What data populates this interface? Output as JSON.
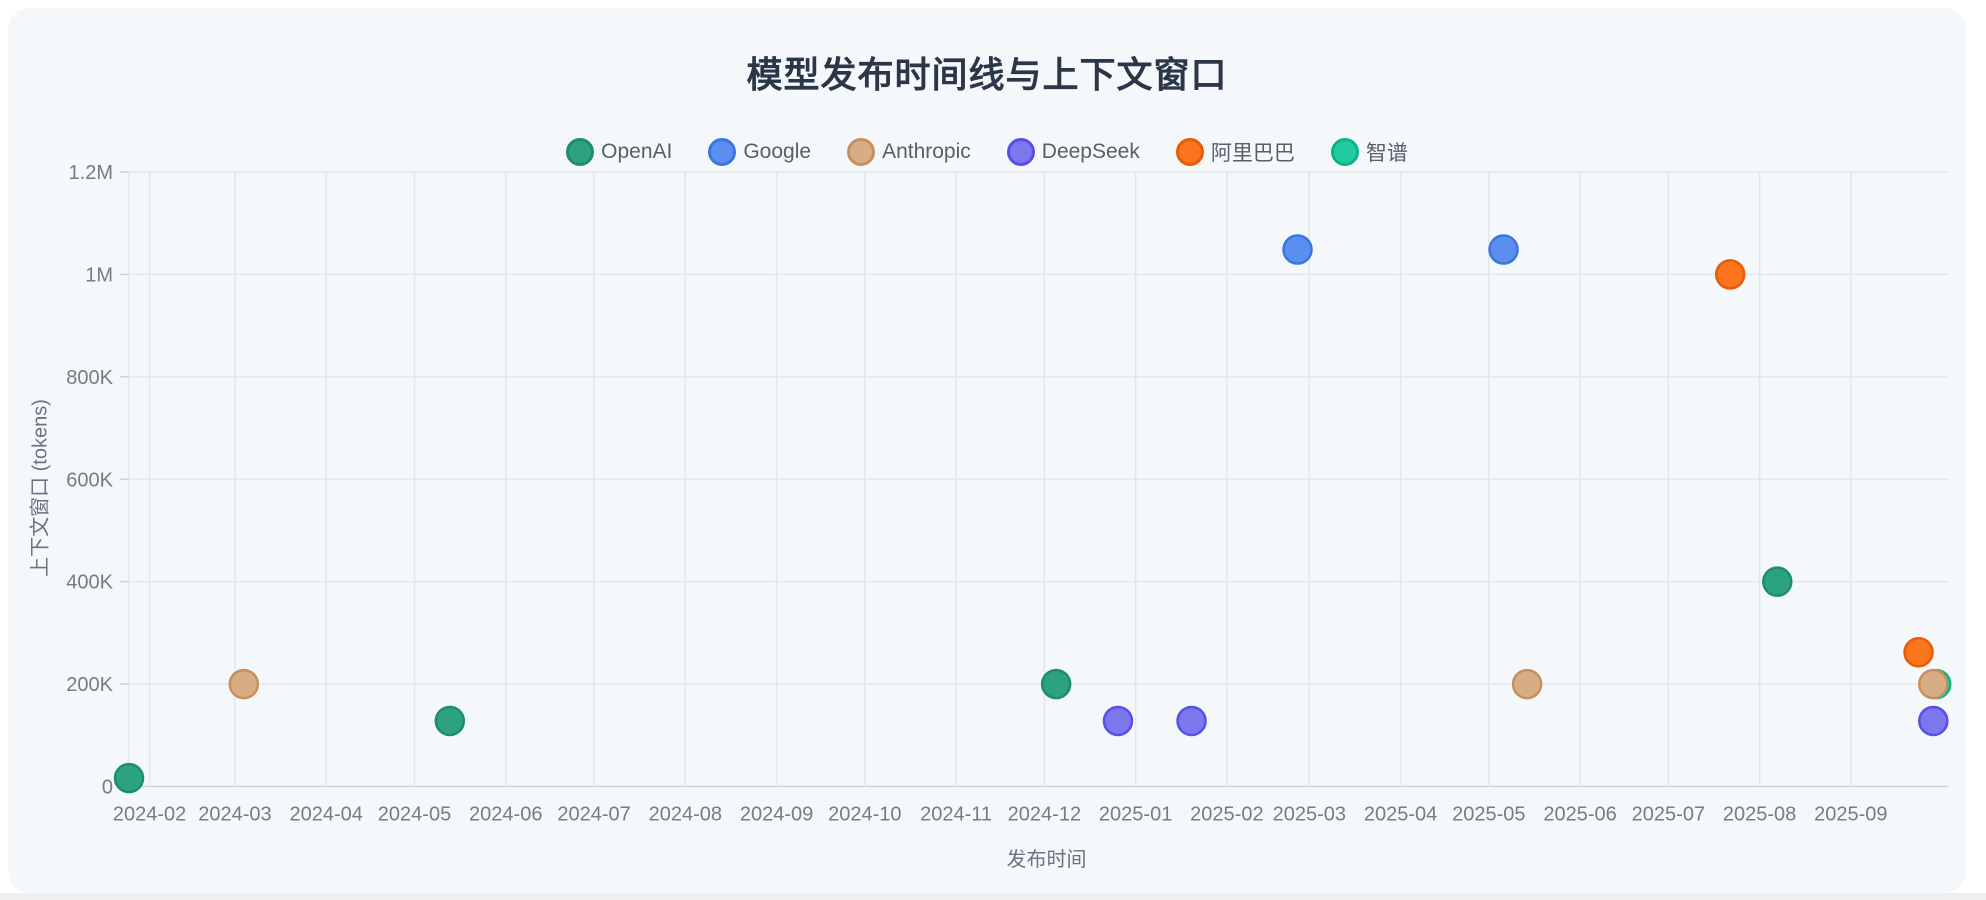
{
  "chart_data": {
    "type": "scatter",
    "title": "模型发布时间线与上下文窗口",
    "xlabel": "发布时间",
    "ylabel": "上下文窗口 (tokens)",
    "x_domain": [
      "2024-01-25",
      "2025-10-04"
    ],
    "y_domain": [
      0,
      1200000
    ],
    "grid": true,
    "legend_position": "top-center",
    "x_ticks": [
      {
        "label": "2024-02",
        "date": "2024-02-01"
      },
      {
        "label": "2024-03",
        "date": "2024-03-01"
      },
      {
        "label": "2024-04",
        "date": "2024-04-01"
      },
      {
        "label": "2024-05",
        "date": "2024-05-01"
      },
      {
        "label": "2024-06",
        "date": "2024-06-01"
      },
      {
        "label": "2024-07",
        "date": "2024-07-01"
      },
      {
        "label": "2024-08",
        "date": "2024-08-01"
      },
      {
        "label": "2024-09",
        "date": "2024-09-01"
      },
      {
        "label": "2024-10",
        "date": "2024-10-01"
      },
      {
        "label": "2024-11",
        "date": "2024-11-01"
      },
      {
        "label": "2024-12",
        "date": "2024-12-01"
      },
      {
        "label": "2025-01",
        "date": "2025-01-01"
      },
      {
        "label": "2025-02",
        "date": "2025-02-01"
      },
      {
        "label": "2025-03",
        "date": "2025-03-01"
      },
      {
        "label": "2025-04",
        "date": "2025-04-01"
      },
      {
        "label": "2025-05",
        "date": "2025-05-01"
      },
      {
        "label": "2025-06",
        "date": "2025-06-01"
      },
      {
        "label": "2025-07",
        "date": "2025-07-01"
      },
      {
        "label": "2025-08",
        "date": "2025-08-01"
      },
      {
        "label": "2025-09",
        "date": "2025-09-01"
      }
    ],
    "y_ticks": [
      {
        "label": "0",
        "value": 0
      },
      {
        "label": "200K",
        "value": 200000
      },
      {
        "label": "400K",
        "value": 400000
      },
      {
        "label": "600K",
        "value": 600000
      },
      {
        "label": "800K",
        "value": 800000
      },
      {
        "label": "1M",
        "value": 1000000
      },
      {
        "label": "1.2M",
        "value": 1200000
      }
    ],
    "legend": [
      {
        "label": "OpenAI",
        "color": "#2ca37e",
        "border": "#1e8e6a"
      },
      {
        "label": "Google",
        "color": "#5a8ff0",
        "border": "#3d74e0"
      },
      {
        "label": "Anthropic",
        "color": "#d9ad83",
        "border": "#c78f5d"
      },
      {
        "label": "DeepSeek",
        "color": "#7d77ed",
        "border": "#5750e6"
      },
      {
        "label": "阿里巴巴",
        "color": "#fa751d",
        "border": "#e95b06"
      },
      {
        "label": "智谱",
        "color": "#21cba2",
        "border": "#0ab488"
      }
    ],
    "series": [
      {
        "name": "OpenAI",
        "color": "#2ca37e",
        "border": "#1e8e6a",
        "points": [
          [
            "2024-01-25",
            16385
          ],
          [
            "2024-05-13",
            128000
          ],
          [
            "2024-12-05",
            200000
          ],
          [
            "2025-08-07",
            400000
          ]
        ]
      },
      {
        "name": "Google",
        "color": "#5a8ff0",
        "border": "#3d74e0",
        "points": [
          [
            "2025-02-25",
            1048576
          ],
          [
            "2025-05-06",
            1048576
          ]
        ]
      },
      {
        "name": "DeepSeek",
        "color": "#7d77ed",
        "border": "#5750e6",
        "points": [
          [
            "2024-12-26",
            128000
          ],
          [
            "2025-01-20",
            128000
          ],
          [
            "2025-09-29",
            128000
          ]
        ]
      },
      {
        "name": "阿里巴巴",
        "color": "#fa751d",
        "border": "#e95b06",
        "points": [
          [
            "2025-07-22",
            1000000
          ],
          [
            "2025-09-24",
            262144
          ]
        ]
      },
      {
        "name": "智谱",
        "color": "#21cba2",
        "border": "#0ab488",
        "points": [
          [
            "2025-09-30",
            200000
          ]
        ]
      },
      {
        "name": "Anthropic",
        "color": "#d9ad83",
        "border": "#c78f5d",
        "points": [
          [
            "2024-03-04",
            200000
          ],
          [
            "2025-05-14",
            200000
          ],
          [
            "2025-09-29",
            200000
          ]
        ]
      }
    ],
    "point_radius": 14,
    "colors": {
      "card_background": "#f4f8fb",
      "grid_line": "#e2e7ed",
      "axis_line": "#ccd3db",
      "tick_label": "#757c87",
      "title": "#2b3648",
      "legend_text": "#565f6a"
    }
  }
}
